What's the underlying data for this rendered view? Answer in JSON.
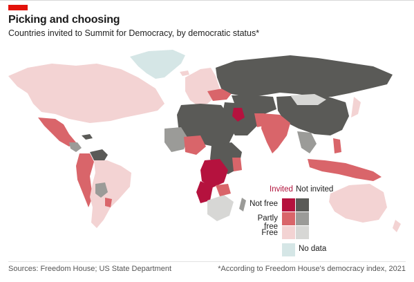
{
  "header": {
    "title": "Picking and choosing",
    "subtitle": "Countries invited to Summit for Democracy, by democratic status*"
  },
  "colors": {
    "invited_not_free": "#b5123e",
    "invited_partly_free": "#d9656a",
    "invited_free": "#f3d3d3",
    "not_invited_not_free": "#5a5a57",
    "not_invited_partly_free": "#9b9b98",
    "not_invited_free": "#d7d7d5",
    "no_data": "#d5e6e6",
    "background": "#ffffff",
    "brand_red": "#e3120b"
  },
  "legend": {
    "col_invited": "Invited",
    "col_not_invited": "Not invited",
    "rows": [
      {
        "label": "Not free"
      },
      {
        "label": "Partly free"
      },
      {
        "label": "Free"
      }
    ],
    "no_data": "No data"
  },
  "footer": {
    "source": "Sources: Freedom House; US State Department",
    "note": "*According to Freedom House's democracy index, 2021"
  }
}
